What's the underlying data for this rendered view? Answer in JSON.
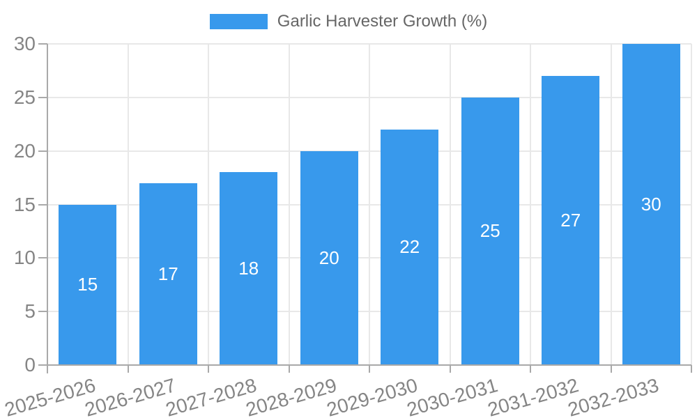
{
  "chart_data": {
    "type": "bar",
    "title": "",
    "series_name": "Garlic Harvester Growth (%)",
    "categories": [
      "2025-2026",
      "2026-2027",
      "2027-2028",
      "2028-2029",
      "2029-2030",
      "2030-2031",
      "2031-2032",
      "2032-2033"
    ],
    "values": [
      15,
      17,
      18,
      20,
      22,
      25,
      27,
      30
    ],
    "value_labels": [
      "15",
      "17",
      "18",
      "20",
      "22",
      "25",
      "27",
      "30"
    ],
    "ylim": [
      0,
      30
    ],
    "yticks": [
      0,
      5,
      10,
      15,
      20,
      25,
      30
    ],
    "ytick_labels": [
      "0",
      "5",
      "10",
      "15",
      "20",
      "25",
      "30"
    ],
    "grid": true,
    "legend_position": "top",
    "colors": {
      "bar": "#3899EC",
      "grid_line": "#E8E8E8",
      "axis_line": "#A9A9A9",
      "tick_label": "#858585",
      "legend_label": "#666666",
      "value_label": "#FFFFFF",
      "background": "#FFFFFF"
    }
  }
}
